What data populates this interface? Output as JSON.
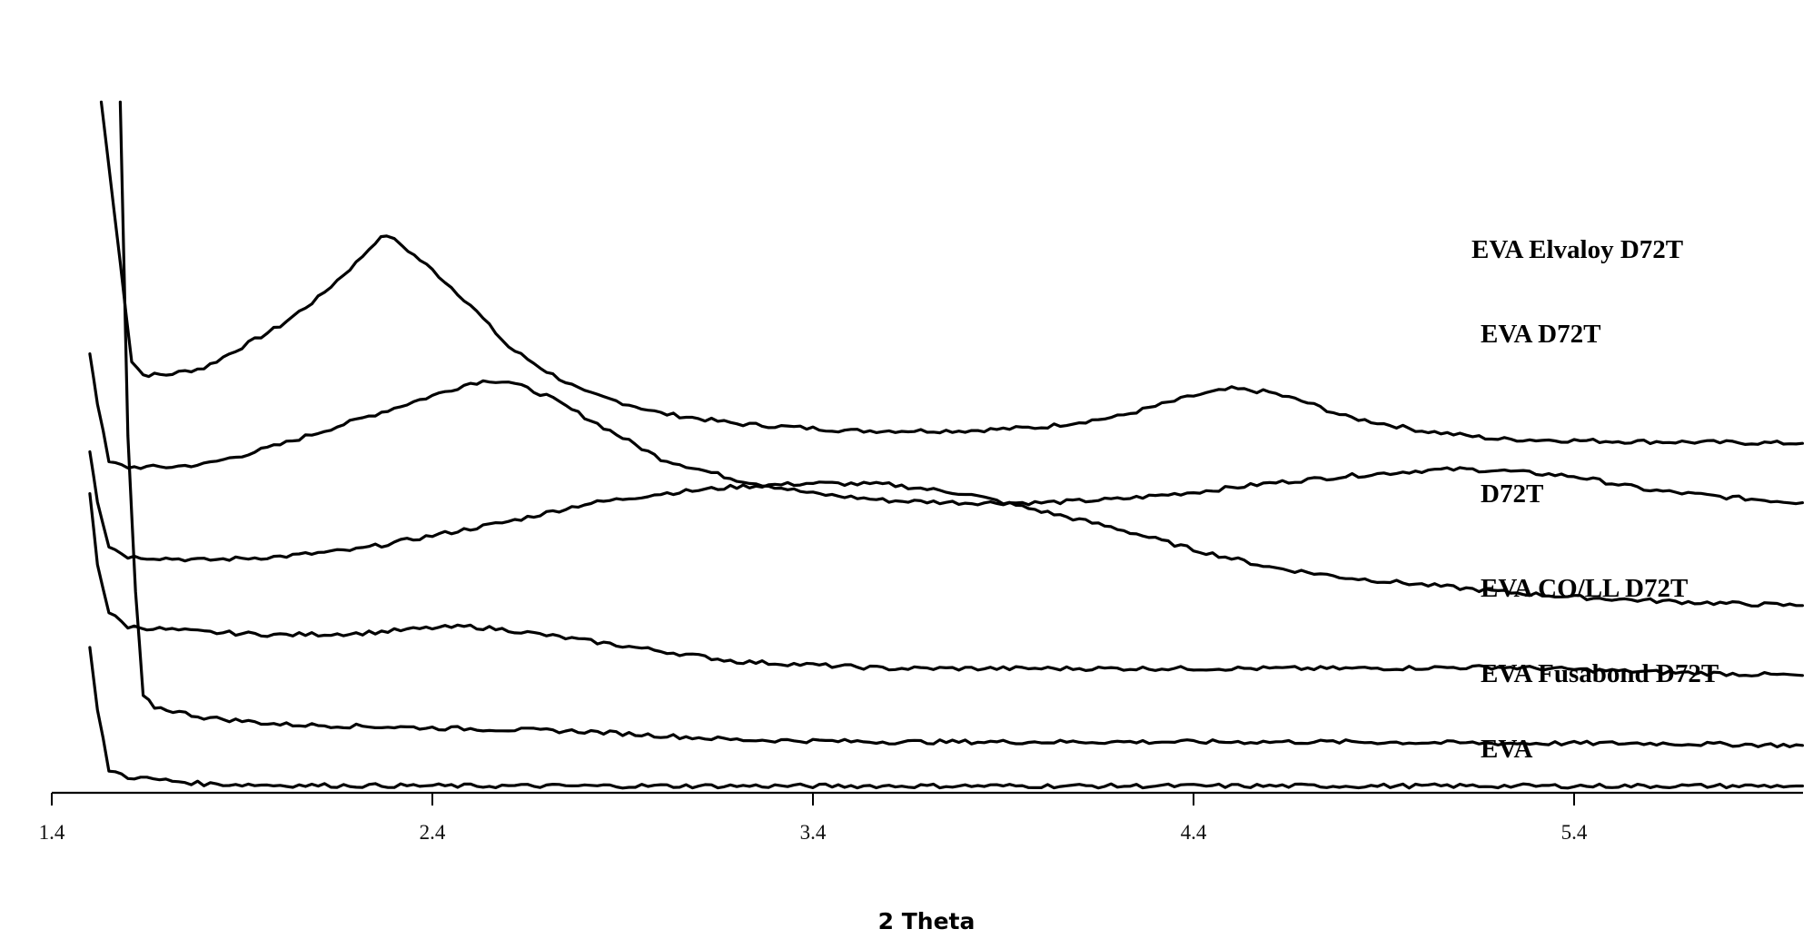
{
  "chart_data": {
    "type": "line",
    "title": "",
    "xlabel": "2 Theta",
    "ylabel": "",
    "xlim": [
      1.4,
      6.0
    ],
    "x_ticks": [
      "1.4",
      "2.4",
      "3.4",
      "4.4",
      "5.4"
    ],
    "grid": false,
    "y_axis_shown": false,
    "legend": "none; series labeled inline at right of each trace",
    "stacked_offset_traces": true,
    "series": [
      {
        "name": "EVA Elvaloy D72T",
        "points": [
          [
            1.53,
            9.8
          ],
          [
            1.58,
            7.5
          ],
          [
            1.61,
            6.1
          ],
          [
            1.64,
            5.9
          ],
          [
            1.7,
            5.9
          ],
          [
            1.8,
            6.0
          ],
          [
            1.9,
            6.3
          ],
          [
            2.0,
            6.6
          ],
          [
            2.1,
            7.0
          ],
          [
            2.2,
            7.5
          ],
          [
            2.25,
            7.8
          ],
          [
            2.28,
            7.9
          ],
          [
            2.32,
            7.75
          ],
          [
            2.4,
            7.4
          ],
          [
            2.5,
            6.9
          ],
          [
            2.6,
            6.3
          ],
          [
            2.7,
            5.95
          ],
          [
            2.8,
            5.65
          ],
          [
            3.0,
            5.35
          ],
          [
            3.2,
            5.2
          ],
          [
            3.5,
            5.1
          ],
          [
            3.8,
            5.1
          ],
          [
            4.0,
            5.15
          ],
          [
            4.2,
            5.3
          ],
          [
            4.3,
            5.45
          ],
          [
            4.4,
            5.6
          ],
          [
            4.5,
            5.7
          ],
          [
            4.6,
            5.65
          ],
          [
            4.7,
            5.5
          ],
          [
            4.8,
            5.3
          ],
          [
            5.0,
            5.1
          ],
          [
            5.2,
            4.98
          ],
          [
            5.5,
            4.95
          ],
          [
            6.0,
            4.92
          ]
        ]
      },
      {
        "name": "EVA D72T",
        "points": [
          [
            1.5,
            6.2
          ],
          [
            1.52,
            5.5
          ],
          [
            1.55,
            4.65
          ],
          [
            1.6,
            4.58
          ],
          [
            1.7,
            4.58
          ],
          [
            1.8,
            4.62
          ],
          [
            1.9,
            4.75
          ],
          [
            2.0,
            4.9
          ],
          [
            2.2,
            5.25
          ],
          [
            2.4,
            5.6
          ],
          [
            2.5,
            5.78
          ],
          [
            2.55,
            5.82
          ],
          [
            2.6,
            5.8
          ],
          [
            2.7,
            5.6
          ],
          [
            2.8,
            5.3
          ],
          [
            2.9,
            5.0
          ],
          [
            3.0,
            4.7
          ],
          [
            3.2,
            4.4
          ],
          [
            3.4,
            4.2
          ],
          [
            3.6,
            4.1
          ],
          [
            3.8,
            4.07
          ],
          [
            4.0,
            4.07
          ],
          [
            4.2,
            4.12
          ],
          [
            4.4,
            4.22
          ],
          [
            4.6,
            4.35
          ],
          [
            4.8,
            4.45
          ],
          [
            5.0,
            4.53
          ],
          [
            5.1,
            4.55
          ],
          [
            5.2,
            4.53
          ],
          [
            5.4,
            4.45
          ],
          [
            5.6,
            4.25
          ],
          [
            5.8,
            4.15
          ],
          [
            6.0,
            4.07
          ]
        ]
      },
      {
        "name": "D72T",
        "points": [
          [
            1.5,
            4.8
          ],
          [
            1.52,
            4.1
          ],
          [
            1.55,
            3.45
          ],
          [
            1.6,
            3.3
          ],
          [
            1.8,
            3.25
          ],
          [
            2.0,
            3.3
          ],
          [
            2.2,
            3.4
          ],
          [
            2.4,
            3.6
          ],
          [
            2.6,
            3.8
          ],
          [
            2.8,
            4.05
          ],
          [
            3.0,
            4.2
          ],
          [
            3.2,
            4.3
          ],
          [
            3.4,
            4.35
          ],
          [
            3.6,
            4.33
          ],
          [
            3.8,
            4.2
          ],
          [
            4.0,
            3.95
          ],
          [
            4.2,
            3.7
          ],
          [
            4.4,
            3.4
          ],
          [
            4.6,
            3.15
          ],
          [
            4.8,
            3.0
          ],
          [
            5.0,
            2.9
          ],
          [
            5.2,
            2.8
          ],
          [
            5.4,
            2.72
          ],
          [
            5.6,
            2.67
          ],
          [
            5.8,
            2.63
          ],
          [
            6.0,
            2.6
          ]
        ]
      },
      {
        "name": "EVA CO/LL D72T",
        "points": [
          [
            1.5,
            4.2
          ],
          [
            1.52,
            3.2
          ],
          [
            1.55,
            2.5
          ],
          [
            1.6,
            2.3
          ],
          [
            1.8,
            2.22
          ],
          [
            2.0,
            2.18
          ],
          [
            2.2,
            2.2
          ],
          [
            2.4,
            2.28
          ],
          [
            2.5,
            2.3
          ],
          [
            2.6,
            2.25
          ],
          [
            2.8,
            2.1
          ],
          [
            3.0,
            1.95
          ],
          [
            3.2,
            1.8
          ],
          [
            3.4,
            1.75
          ],
          [
            3.6,
            1.7
          ],
          [
            4.0,
            1.7
          ],
          [
            4.4,
            1.7
          ],
          [
            4.8,
            1.7
          ],
          [
            5.2,
            1.72
          ],
          [
            5.6,
            1.65
          ],
          [
            6.0,
            1.6
          ]
        ]
      },
      {
        "name": "EVA Fusabond D72T",
        "points": [
          [
            1.58,
            9.8
          ],
          [
            1.6,
            5.0
          ],
          [
            1.62,
            2.8
          ],
          [
            1.64,
            1.3
          ],
          [
            1.67,
            1.15
          ],
          [
            1.8,
            1.0
          ],
          [
            2.0,
            0.9
          ],
          [
            2.4,
            0.85
          ],
          [
            2.8,
            0.8
          ],
          [
            3.2,
            0.68
          ],
          [
            3.6,
            0.65
          ],
          [
            4.0,
            0.65
          ],
          [
            4.4,
            0.65
          ],
          [
            4.8,
            0.65
          ],
          [
            5.2,
            0.63
          ],
          [
            5.6,
            0.63
          ],
          [
            6.0,
            0.6
          ]
        ]
      },
      {
        "name": "EVA",
        "points": [
          [
            1.5,
            2.0
          ],
          [
            1.52,
            1.1
          ],
          [
            1.55,
            0.25
          ],
          [
            1.6,
            0.15
          ],
          [
            1.7,
            0.1
          ],
          [
            1.8,
            0.05
          ],
          [
            2.0,
            0.03
          ],
          [
            2.5,
            0.02
          ],
          [
            3.0,
            0.02
          ],
          [
            4.0,
            0.02
          ],
          [
            5.0,
            0.02
          ],
          [
            6.0,
            0.02
          ]
        ]
      }
    ]
  }
}
